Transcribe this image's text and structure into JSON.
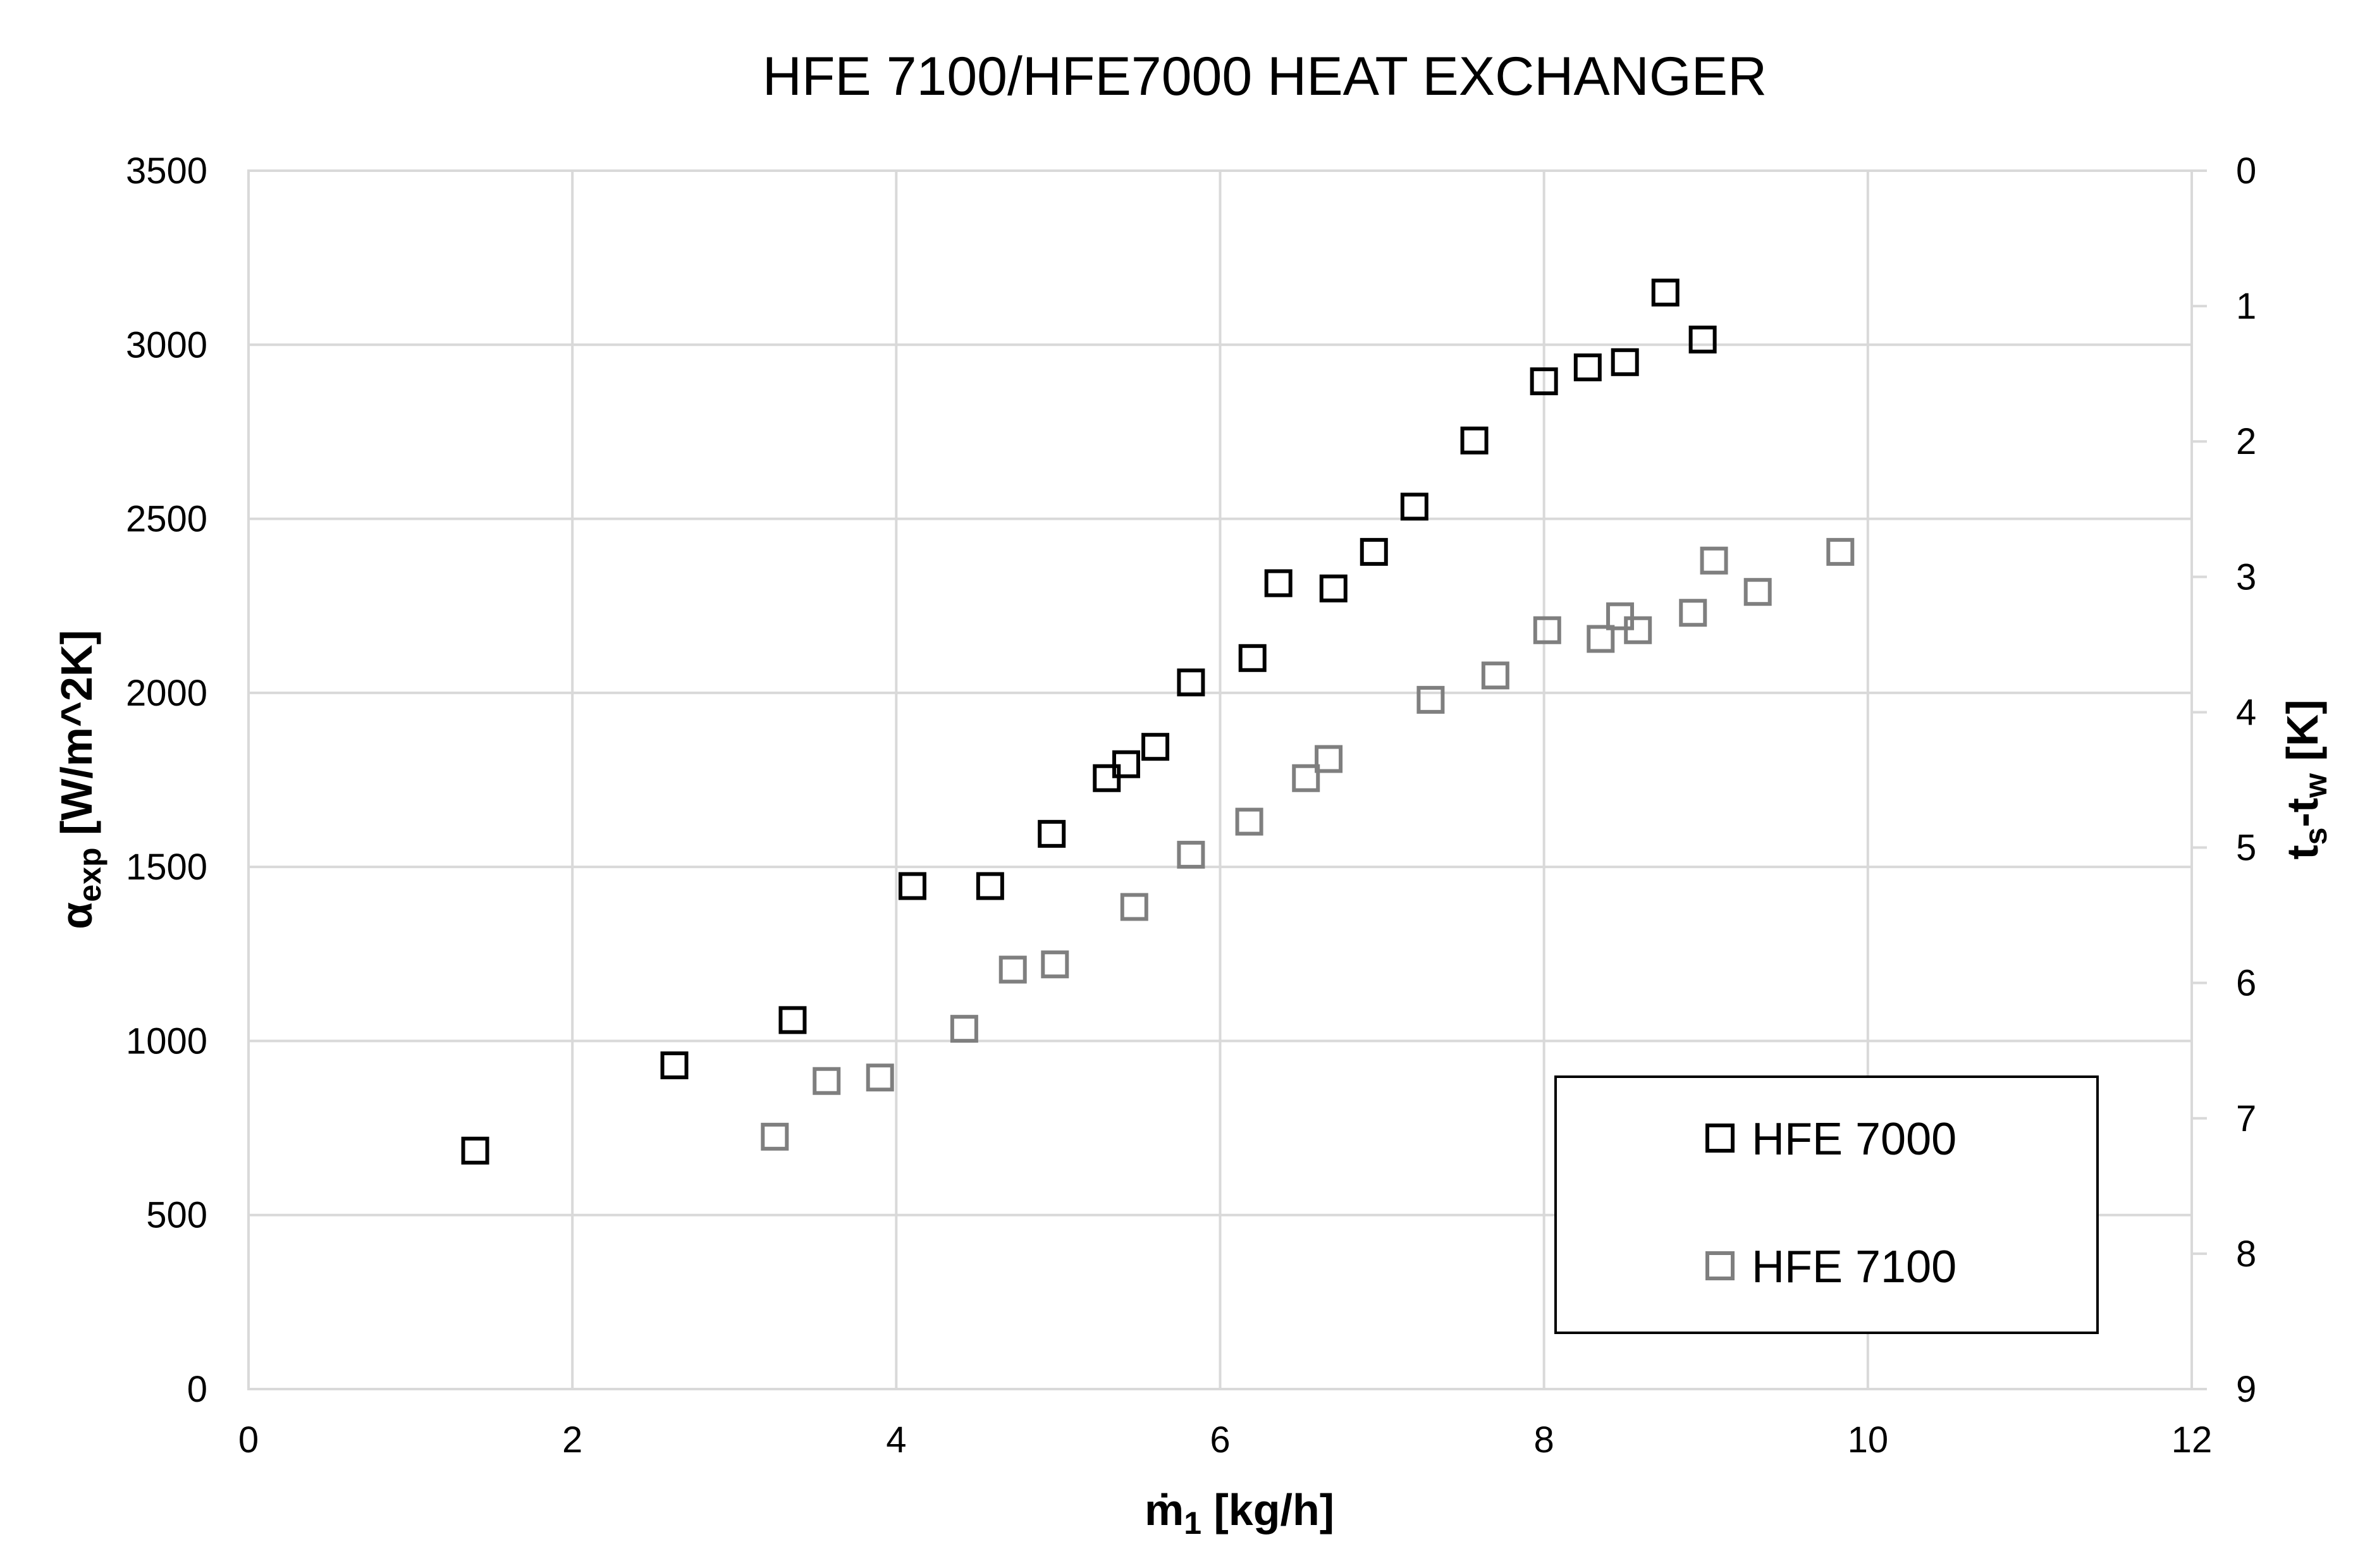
{
  "chart_data": {
    "type": "scatter",
    "title": "HFE 7100/HFE7000 HEAT EXCHANGER",
    "xlabel": {
      "main": "ṁ",
      "sub": "1",
      "rest": " [kg/h]"
    },
    "ylabel": {
      "main": "α",
      "sub": "exp",
      "rest": " [W/m^2K]"
    },
    "y2label": {
      "main1": "t",
      "sub1": "s",
      "mid": "-t",
      "sub2": "w",
      "rest": " [K]"
    },
    "xlim": [
      0,
      12
    ],
    "ylim": [
      0,
      3500
    ],
    "y2lim": [
      0,
      9
    ],
    "y2_inverted": true,
    "x_ticks": [
      "0",
      "2",
      "4",
      "6",
      "8",
      "10",
      "12"
    ],
    "y_ticks": [
      "0",
      "500",
      "1000",
      "1500",
      "2000",
      "2500",
      "3000",
      "3500"
    ],
    "y2_ticks": [
      "0",
      "1",
      "2",
      "3",
      "4",
      "5",
      "6",
      "7",
      "8",
      "9"
    ],
    "grid": true,
    "legend_position": "bottom-right",
    "series": [
      {
        "name": "HFE 7000",
        "color": "#000000",
        "marker": "hollow-square",
        "points": [
          [
            1.4,
            685
          ],
          [
            2.63,
            930
          ],
          [
            3.36,
            1060
          ],
          [
            4.1,
            1445
          ],
          [
            4.58,
            1445
          ],
          [
            4.96,
            1595
          ],
          [
            5.3,
            1755
          ],
          [
            5.42,
            1795
          ],
          [
            5.6,
            1845
          ],
          [
            5.82,
            2030
          ],
          [
            6.2,
            2100
          ],
          [
            6.36,
            2315
          ],
          [
            6.7,
            2300
          ],
          [
            6.95,
            2405
          ],
          [
            7.2,
            2535
          ],
          [
            7.57,
            2725
          ],
          [
            8.0,
            2895
          ],
          [
            8.27,
            2935
          ],
          [
            8.5,
            2950
          ],
          [
            8.75,
            3150
          ],
          [
            8.98,
            3015
          ]
        ]
      },
      {
        "name": "HFE 7100",
        "color": "#7f7f7f",
        "marker": "hollow-square",
        "points": [
          [
            3.25,
            725
          ],
          [
            3.57,
            885
          ],
          [
            3.9,
            895
          ],
          [
            4.42,
            1035
          ],
          [
            4.72,
            1205
          ],
          [
            4.98,
            1220
          ],
          [
            5.47,
            1385
          ],
          [
            5.82,
            1535
          ],
          [
            6.18,
            1630
          ],
          [
            6.53,
            1755
          ],
          [
            6.67,
            1810
          ],
          [
            7.3,
            1980
          ],
          [
            7.7,
            2050
          ],
          [
            8.02,
            2180
          ],
          [
            8.35,
            2155
          ],
          [
            8.47,
            2220
          ],
          [
            8.58,
            2180
          ],
          [
            8.92,
            2230
          ],
          [
            9.05,
            2380
          ],
          [
            9.32,
            2290
          ],
          [
            9.83,
            2405
          ]
        ]
      }
    ]
  }
}
